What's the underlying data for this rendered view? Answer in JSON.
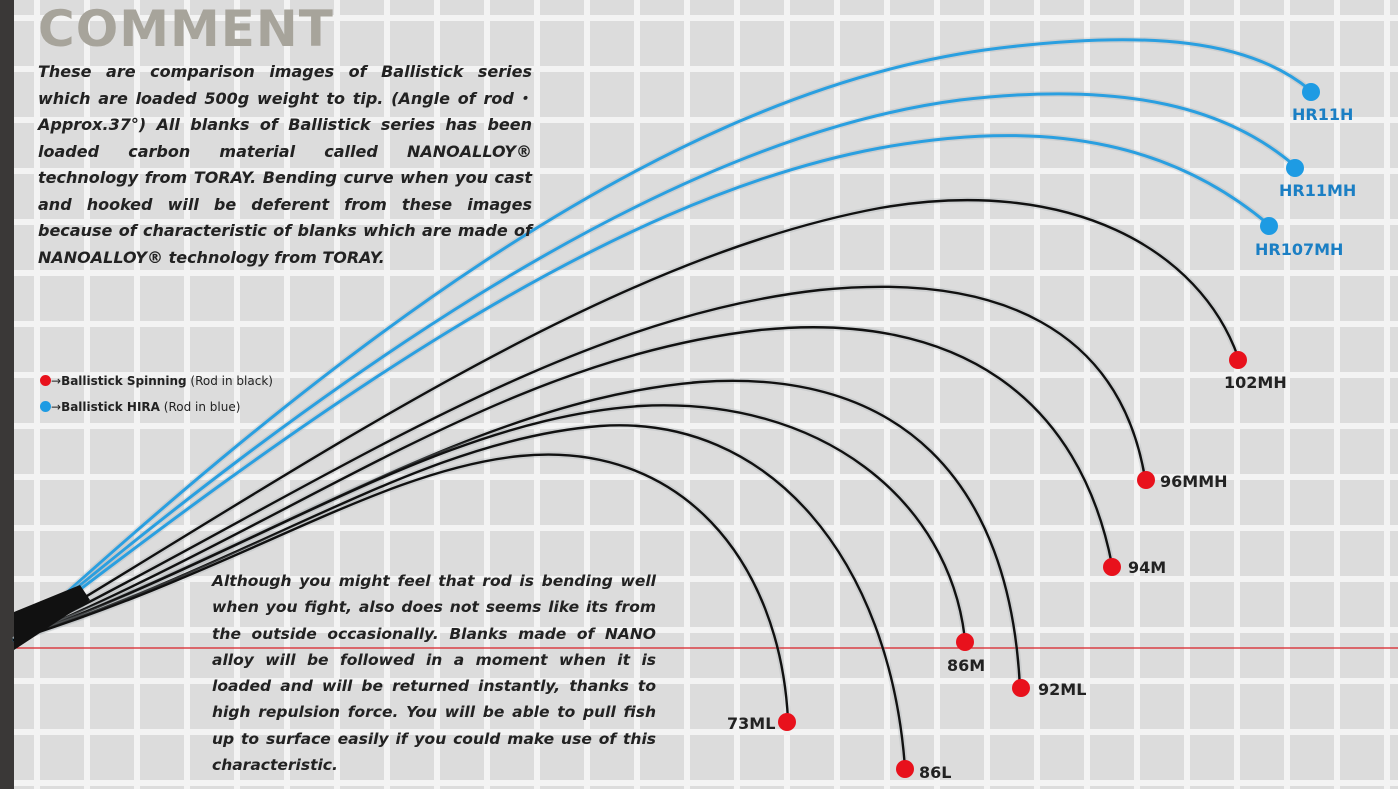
{
  "heading": "COMMENT",
  "comment_top": "These are comparison images of Ballistick series which are loaded 500g weight to tip. (Angle of rod・Approx.37°) All blanks of Ballistick series has been loaded carbon material called NANOALLOY® technology from TORAY. Bending curve when you cast and hooked will be deferent from these images because of characteristic of blanks which are made of NANOALLOY® technology from TORAY.",
  "comment_bottom": "Although you might feel that rod is bending well when you fight, also does not seems like its from the outside occasionally. Blanks made of NANO alloy will be followed in a moment when it is loaded and will be returned instantly, thanks to high repulsion force. You will be able to pull fish up to surface easily if you could make use of this characteristic.",
  "legend": [
    {
      "arrow": "→",
      "name": "Ballistick Spinning",
      "note": "(Rod in black)",
      "color": "#e8111c"
    },
    {
      "arrow": "→",
      "name": "Ballistick HIRA",
      "note": "(Rod in blue)",
      "color": "#1e9be3"
    }
  ],
  "colors": {
    "spinning": "#e8111c",
    "hira": "#1e9be3",
    "rod_black": "#111111",
    "rod_blue": "#2a9fe0",
    "baseline": "#d81f26"
  },
  "rods": [
    {
      "label": "HR11H",
      "series": "hira"
    },
    {
      "label": "HR11MH",
      "series": "hira"
    },
    {
      "label": "HR107MH",
      "series": "hira"
    },
    {
      "label": "102MH",
      "series": "spinning"
    },
    {
      "label": "96MMH",
      "series": "spinning"
    },
    {
      "label": "94M",
      "series": "spinning"
    },
    {
      "label": "92ML",
      "series": "spinning"
    },
    {
      "label": "86M",
      "series": "spinning"
    },
    {
      "label": "86L",
      "series": "spinning"
    },
    {
      "label": "73ML",
      "series": "spinning"
    }
  ]
}
